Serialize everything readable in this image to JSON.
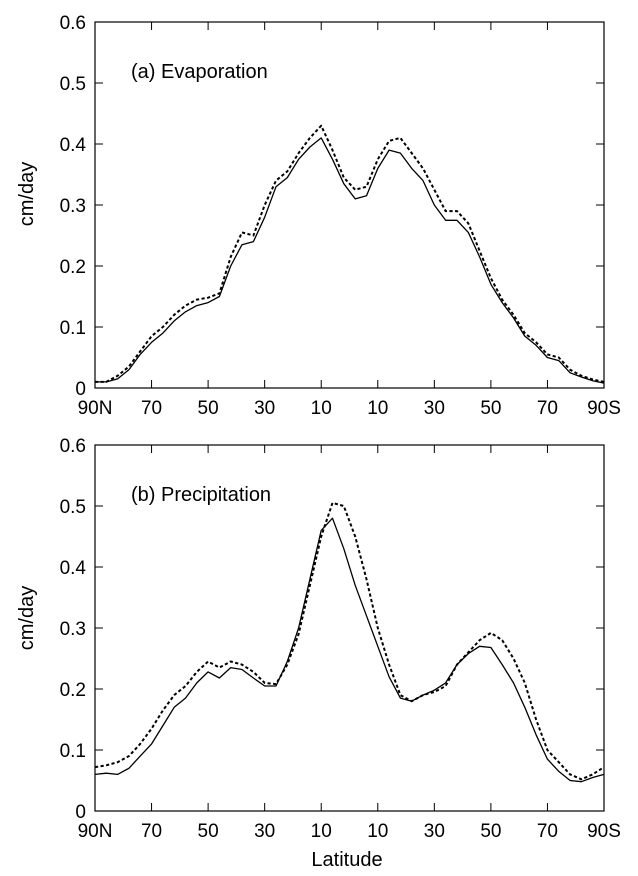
{
  "chart_data": [
    {
      "type": "line",
      "title": "(a) Evaporation",
      "xlabel": "",
      "ylabel": "cm/day",
      "ylim": [
        0,
        0.6
      ],
      "y_ticks": [
        "0",
        "0.1",
        "0.2",
        "0.3",
        "0.4",
        "0.5",
        "0.6"
      ],
      "xlim": [
        90,
        -90
      ],
      "x_ticks": [
        {
          "value": 90,
          "label": "90N"
        },
        {
          "value": 70,
          "label": "70"
        },
        {
          "value": 50,
          "label": "50"
        },
        {
          "value": 30,
          "label": "30"
        },
        {
          "value": 10,
          "label": "10"
        },
        {
          "value": -10,
          "label": "10"
        },
        {
          "value": -30,
          "label": "30"
        },
        {
          "value": -50,
          "label": "50"
        },
        {
          "value": -70,
          "label": "70"
        },
        {
          "value": -90,
          "label": "90S"
        }
      ],
      "x": [
        90,
        86,
        82,
        78,
        74,
        70,
        66,
        62,
        58,
        54,
        50,
        46,
        42,
        38,
        34,
        30,
        26,
        22,
        18,
        14,
        10,
        6,
        2,
        -2,
        -6,
        -10,
        -14,
        -18,
        -22,
        -26,
        -30,
        -34,
        -38,
        -42,
        -46,
        -50,
        -54,
        -58,
        -62,
        -66,
        -70,
        -74,
        -78,
        -82,
        -86,
        -90
      ],
      "series": [
        {
          "style": "solid",
          "values": [
            0.01,
            0.01,
            0.015,
            0.03,
            0.055,
            0.075,
            0.09,
            0.11,
            0.125,
            0.135,
            0.14,
            0.15,
            0.2,
            0.235,
            0.24,
            0.28,
            0.33,
            0.345,
            0.375,
            0.395,
            0.41,
            0.375,
            0.335,
            0.31,
            0.315,
            0.36,
            0.39,
            0.385,
            0.36,
            0.34,
            0.3,
            0.275,
            0.275,
            0.255,
            0.215,
            0.17,
            0.14,
            0.115,
            0.085,
            0.07,
            0.05,
            0.045,
            0.025,
            0.018,
            0.012,
            0.008
          ]
        },
        {
          "style": "dashed",
          "values": [
            0.01,
            0.01,
            0.02,
            0.035,
            0.06,
            0.085,
            0.1,
            0.12,
            0.135,
            0.145,
            0.148,
            0.155,
            0.215,
            0.255,
            0.25,
            0.3,
            0.34,
            0.355,
            0.385,
            0.41,
            0.43,
            0.39,
            0.345,
            0.325,
            0.33,
            0.375,
            0.405,
            0.41,
            0.385,
            0.36,
            0.325,
            0.29,
            0.29,
            0.27,
            0.225,
            0.18,
            0.145,
            0.12,
            0.09,
            0.075,
            0.055,
            0.05,
            0.03,
            0.02,
            0.014,
            0.01
          ]
        }
      ]
    },
    {
      "type": "line",
      "title": "(b) Precipitation",
      "xlabel": "Latitude",
      "ylabel": "cm/day",
      "ylim": [
        0,
        0.6
      ],
      "y_ticks": [
        "0",
        "0.1",
        "0.2",
        "0.3",
        "0.4",
        "0.5",
        "0.6"
      ],
      "xlim": [
        90,
        -90
      ],
      "x_ticks": [
        {
          "value": 90,
          "label": "90N"
        },
        {
          "value": 70,
          "label": "70"
        },
        {
          "value": 50,
          "label": "50"
        },
        {
          "value": 30,
          "label": "30"
        },
        {
          "value": 10,
          "label": "10"
        },
        {
          "value": -10,
          "label": "10"
        },
        {
          "value": -30,
          "label": "30"
        },
        {
          "value": -50,
          "label": "50"
        },
        {
          "value": -70,
          "label": "70"
        },
        {
          "value": -90,
          "label": "90S"
        }
      ],
      "x": [
        90,
        86,
        82,
        78,
        74,
        70,
        66,
        62,
        58,
        54,
        50,
        46,
        42,
        38,
        34,
        30,
        26,
        22,
        18,
        14,
        10,
        6,
        2,
        -2,
        -6,
        -10,
        -14,
        -18,
        -22,
        -26,
        -30,
        -34,
        -38,
        -42,
        -46,
        -50,
        -54,
        -58,
        -62,
        -66,
        -70,
        -74,
        -78,
        -82,
        -86,
        -90
      ],
      "series": [
        {
          "style": "solid",
          "values": [
            0.06,
            0.062,
            0.06,
            0.07,
            0.09,
            0.11,
            0.14,
            0.17,
            0.185,
            0.21,
            0.228,
            0.218,
            0.235,
            0.232,
            0.218,
            0.205,
            0.205,
            0.245,
            0.3,
            0.38,
            0.46,
            0.48,
            0.43,
            0.37,
            0.32,
            0.27,
            0.22,
            0.185,
            0.18,
            0.19,
            0.198,
            0.21,
            0.24,
            0.258,
            0.27,
            0.268,
            0.24,
            0.21,
            0.17,
            0.125,
            0.085,
            0.065,
            0.05,
            0.048,
            0.055,
            0.06
          ]
        },
        {
          "style": "dashed",
          "values": [
            0.072,
            0.075,
            0.08,
            0.09,
            0.11,
            0.135,
            0.165,
            0.19,
            0.205,
            0.228,
            0.245,
            0.235,
            0.245,
            0.24,
            0.228,
            0.21,
            0.208,
            0.24,
            0.29,
            0.37,
            0.45,
            0.505,
            0.5,
            0.45,
            0.38,
            0.3,
            0.24,
            0.19,
            0.18,
            0.19,
            0.195,
            0.205,
            0.24,
            0.26,
            0.28,
            0.292,
            0.28,
            0.25,
            0.21,
            0.15,
            0.1,
            0.08,
            0.06,
            0.052,
            0.06,
            0.072
          ]
        }
      ]
    }
  ]
}
